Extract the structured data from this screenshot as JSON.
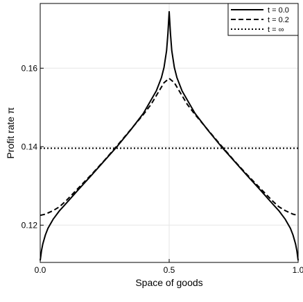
{
  "chart_data": {
    "type": "line",
    "title": "",
    "xlabel": "Space of goods",
    "ylabel": "Profit rate π",
    "xlim": [
      0.0,
      1.0
    ],
    "ylim": [
      0.1105,
      0.1765
    ],
    "grid": true,
    "legend_position": "top-right",
    "x_ticks": [
      {
        "value": 0.0,
        "label": "0.0"
      },
      {
        "value": 0.5,
        "label": "0.5"
      },
      {
        "value": 1.0,
        "label": "1.0"
      }
    ],
    "y_ticks": [
      {
        "value": 0.12,
        "label": "0.12"
      },
      {
        "value": 0.14,
        "label": "0.14"
      },
      {
        "value": 0.16,
        "label": "0.16"
      }
    ],
    "series": [
      {
        "name": "t = 0.0",
        "style": "solid",
        "x": [
          0.0,
          0.005,
          0.01,
          0.02,
          0.03,
          0.05,
          0.075,
          0.1,
          0.15,
          0.2,
          0.25,
          0.3,
          0.35,
          0.4,
          0.45,
          0.47,
          0.48,
          0.49,
          0.495,
          0.5,
          0.505,
          0.51,
          0.52,
          0.53,
          0.55,
          0.6,
          0.65,
          0.7,
          0.75,
          0.8,
          0.85,
          0.9,
          0.925,
          0.95,
          0.97,
          0.98,
          0.99,
          0.995,
          1.0
        ],
        "y": [
          0.111,
          0.1135,
          0.1152,
          0.1175,
          0.1192,
          0.1215,
          0.1237,
          0.1255,
          0.1292,
          0.1328,
          0.1365,
          0.1402,
          0.1442,
          0.1485,
          0.1542,
          0.1576,
          0.1602,
          0.1645,
          0.1688,
          0.1744,
          0.1688,
          0.1645,
          0.1602,
          0.1576,
          0.1542,
          0.1485,
          0.1442,
          0.1402,
          0.1365,
          0.1328,
          0.1292,
          0.1255,
          0.1237,
          0.1215,
          0.1192,
          0.1175,
          0.1152,
          0.1135,
          0.111
        ]
      },
      {
        "name": "t = 0.2",
        "style": "dashed",
        "x": [
          0.0,
          0.02,
          0.05,
          0.075,
          0.1,
          0.15,
          0.2,
          0.25,
          0.3,
          0.35,
          0.4,
          0.43,
          0.46,
          0.48,
          0.5,
          0.52,
          0.54,
          0.57,
          0.6,
          0.65,
          0.7,
          0.75,
          0.8,
          0.85,
          0.9,
          0.925,
          0.95,
          0.98,
          1.0
        ],
        "y": [
          0.1225,
          0.1228,
          0.1237,
          0.1247,
          0.1262,
          0.1296,
          0.133,
          0.1366,
          0.1404,
          0.1443,
          0.1482,
          0.1508,
          0.1541,
          0.1563,
          0.1574,
          0.1563,
          0.1541,
          0.1508,
          0.1482,
          0.1443,
          0.1404,
          0.1366,
          0.133,
          0.1296,
          0.1262,
          0.1247,
          0.1237,
          0.1228,
          0.1225
        ]
      },
      {
        "name": "t = ∞",
        "style": "dotted",
        "x": [
          0.0,
          1.0
        ],
        "y": [
          0.1396,
          0.1396
        ]
      }
    ]
  }
}
